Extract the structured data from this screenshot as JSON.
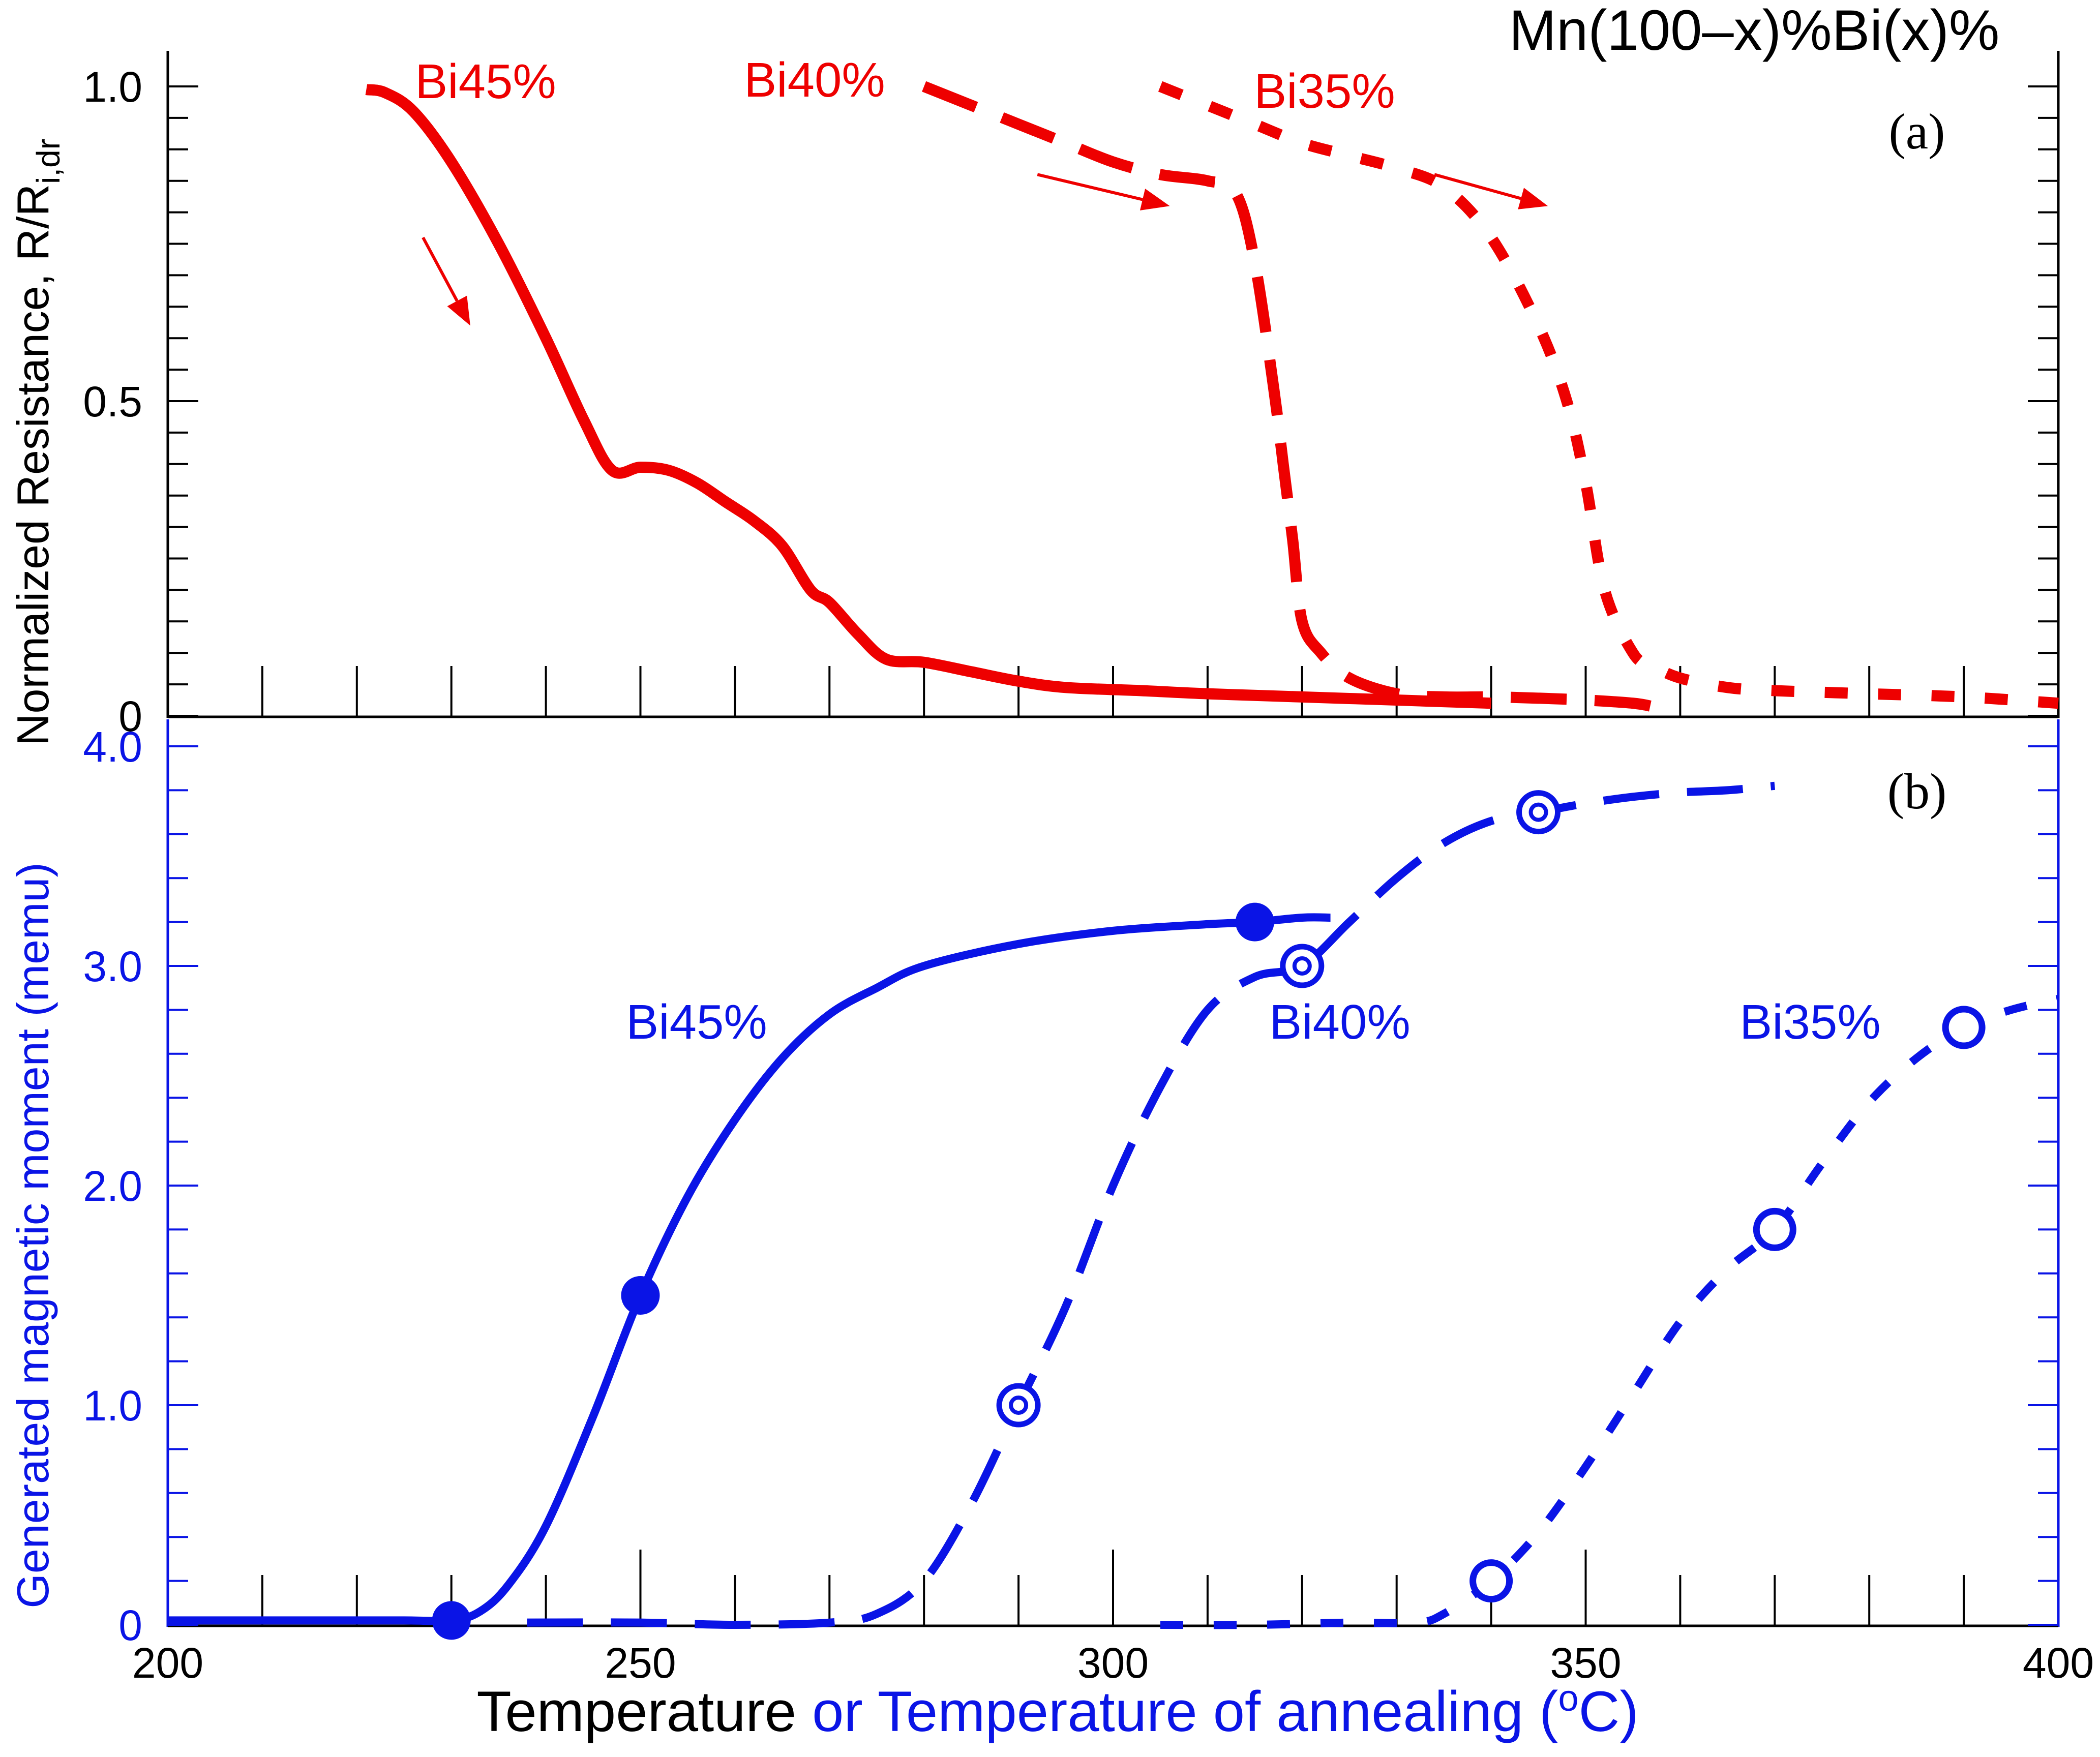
{
  "colors": {
    "resistance": "#ee0000",
    "magnetic": "#0a14e6",
    "axis": "#000000",
    "axis_b": "#0a14e6"
  },
  "figure": {
    "composition_title": "Mn(100–x)%Bi(x)%",
    "xlabel_part1": "Temperature",
    "xlabel_part2": " or Temperature of annealing (",
    "xlabel_degree": "o",
    "xlabel_part3": "C)"
  },
  "chart_data": [
    {
      "panel": "(a)",
      "type": "line",
      "title": "Mn(100–x)%Bi(x)%",
      "ylabel": "Normalized Resistance, R/R",
      "ylabel_sub": "i,dr",
      "xlim": [
        200,
        400
      ],
      "ylim": [
        0,
        1.0
      ],
      "yticks": [
        {
          "v": 0,
          "label": "0"
        },
        {
          "v": 0.5,
          "label": "0.5"
        },
        {
          "v": 1.0,
          "label": "1.0"
        }
      ],
      "series": [
        {
          "name": "Bi45%",
          "style": "solid",
          "x": [
            221,
            223,
            226,
            230,
            235,
            240,
            244,
            247,
            250,
            253,
            256,
            259,
            262,
            265,
            268,
            270,
            273,
            276,
            280,
            285,
            290,
            295,
            303,
            310,
            320,
            330,
            340
          ],
          "y": [
            0.995,
            0.99,
            0.96,
            0.88,
            0.75,
            0.6,
            0.47,
            0.39,
            0.395,
            0.39,
            0.37,
            0.34,
            0.31,
            0.27,
            0.2,
            0.18,
            0.13,
            0.09,
            0.085,
            0.07,
            0.055,
            0.045,
            0.04,
            0.035,
            0.03,
            0.025,
            0.02
          ]
        },
        {
          "name": "Bi40%",
          "style": "dashed",
          "x": [
            280,
            285,
            290,
            295,
            300,
            305,
            310,
            313,
            315,
            317,
            318,
            319,
            320,
            322,
            325,
            330,
            335,
            340,
            345,
            350,
            355,
            357
          ],
          "y": [
            1.0,
            0.97,
            0.94,
            0.91,
            0.88,
            0.86,
            0.85,
            0.83,
            0.72,
            0.52,
            0.4,
            0.28,
            0.15,
            0.1,
            0.06,
            0.035,
            0.03,
            0.03,
            0.028,
            0.025,
            0.02,
            0.015
          ]
        },
        {
          "name": "Bi35%",
          "style": "dotted",
          "x": [
            305,
            310,
            315,
            320,
            325,
            330,
            335,
            340,
            345,
            348,
            350,
            352,
            355,
            357,
            360,
            365,
            370,
            380,
            390,
            400
          ],
          "y": [
            1.0,
            0.97,
            0.94,
            0.91,
            0.89,
            0.87,
            0.84,
            0.76,
            0.62,
            0.5,
            0.37,
            0.2,
            0.1,
            0.08,
            0.06,
            0.045,
            0.04,
            0.035,
            0.03,
            0.02
          ]
        }
      ],
      "annotations": [
        {
          "text": "Bi45%"
        },
        {
          "text": "Bi40%"
        },
        {
          "text": "Bi35%"
        },
        {
          "text": "(a)"
        }
      ]
    },
    {
      "panel": "(b)",
      "type": "line",
      "xlabel": "Temperature or Temperature of annealing (oC)",
      "ylabel": "Generated magnetic moment  (memu)",
      "xlim": [
        200,
        400
      ],
      "ylim": [
        0,
        4.0
      ],
      "xticks": [
        {
          "v": 200,
          "label": "200"
        },
        {
          "v": 250,
          "label": "250"
        },
        {
          "v": 300,
          "label": "300"
        },
        {
          "v": 350,
          "label": "350"
        },
        {
          "v": 400,
          "label": "400"
        }
      ],
      "yticks": [
        {
          "v": 0,
          "label": "0"
        },
        {
          "v": 1.0,
          "label": "1.0"
        },
        {
          "v": 2.0,
          "label": "2.0"
        },
        {
          "v": 3.0,
          "label": "3.0"
        },
        {
          "v": 4.0,
          "label": "4.0"
        }
      ],
      "series": [
        {
          "name": "Bi45%",
          "style": "solid",
          "marker": "filled-circle",
          "points_x": [
            230,
            250,
            315
          ],
          "points_y": [
            0.02,
            1.5,
            3.2
          ],
          "x": [
            200,
            215,
            225,
            230,
            233,
            236,
            240,
            245,
            250,
            255,
            260,
            265,
            270,
            275,
            280,
            290,
            300,
            310,
            315,
            320,
            323
          ],
          "y": [
            0.02,
            0.02,
            0.02,
            0.02,
            0.06,
            0.18,
            0.45,
            0.95,
            1.5,
            1.95,
            2.3,
            2.58,
            2.78,
            2.9,
            3.0,
            3.1,
            3.16,
            3.19,
            3.2,
            3.22,
            3.22
          ]
        },
        {
          "name": "Bi40%",
          "style": "dashed",
          "marker": "double-circle",
          "points_x": [
            290,
            320,
            345
          ],
          "points_y": [
            1.0,
            3.0,
            3.7
          ],
          "x": [
            238,
            250,
            260,
            270,
            275,
            280,
            285,
            290,
            295,
            300,
            305,
            310,
            315,
            320,
            325,
            330,
            335,
            340,
            345,
            350,
            355,
            360,
            365,
            370
          ],
          "y": [
            0.01,
            0.01,
            0.0,
            0.01,
            0.05,
            0.2,
            0.55,
            1.0,
            1.45,
            2.0,
            2.45,
            2.8,
            2.95,
            3.0,
            3.2,
            3.4,
            3.56,
            3.66,
            3.7,
            3.74,
            3.77,
            3.79,
            3.8,
            3.82
          ]
        },
        {
          "name": "Bi35%",
          "style": "dotted",
          "marker": "open-circle",
          "points_x": [
            340,
            370,
            390
          ],
          "points_y": [
            0.2,
            1.8,
            2.72
          ],
          "x": [
            305,
            315,
            325,
            332,
            335,
            340,
            345,
            350,
            355,
            360,
            365,
            370,
            375,
            380,
            385,
            390,
            395,
            400
          ],
          "y": [
            0.0,
            0.0,
            0.01,
            0.01,
            0.05,
            0.2,
            0.42,
            0.72,
            1.05,
            1.38,
            1.62,
            1.8,
            2.1,
            2.38,
            2.58,
            2.72,
            2.8,
            2.85
          ]
        }
      ],
      "annotations": [
        {
          "text": "Bi45%"
        },
        {
          "text": "Bi40%"
        },
        {
          "text": "Bi35%"
        },
        {
          "text": "(b)"
        }
      ]
    }
  ]
}
